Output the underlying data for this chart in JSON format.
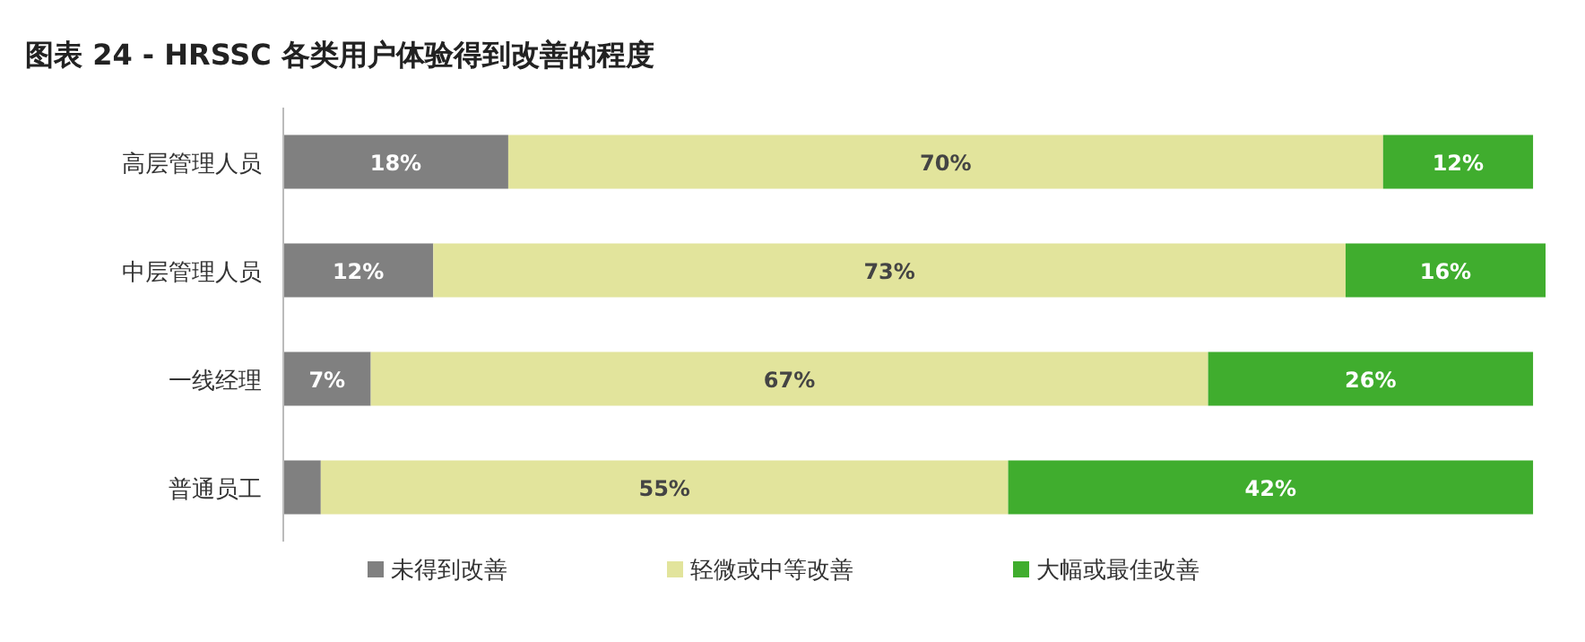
{
  "chart_data": {
    "type": "bar",
    "orientation": "horizontal",
    "stacked": true,
    "title": "图表 24 - HRSSC 各类用户体验得到改善的程度",
    "categories": [
      "高层管理人员",
      "中层管理人员",
      "一线经理",
      "普通员工"
    ],
    "series": [
      {
        "name": "未得到改善",
        "color": "#808080",
        "values": [
          18,
          12,
          7,
          3
        ],
        "value_labels": [
          "18%",
          "12%",
          "7%",
          null
        ]
      },
      {
        "name": "轻微或中等改善",
        "color": "#e2e49c",
        "values": [
          70,
          73,
          67,
          55
        ],
        "value_labels": [
          "70%",
          "73%",
          "67%",
          "55%"
        ]
      },
      {
        "name": "大幅或最佳改善",
        "color": "#40ad2e",
        "values": [
          12,
          16,
          26,
          42
        ],
        "value_labels": [
          "12%",
          "16%",
          "26%",
          "42%"
        ]
      }
    ],
    "legend": "bottom"
  }
}
